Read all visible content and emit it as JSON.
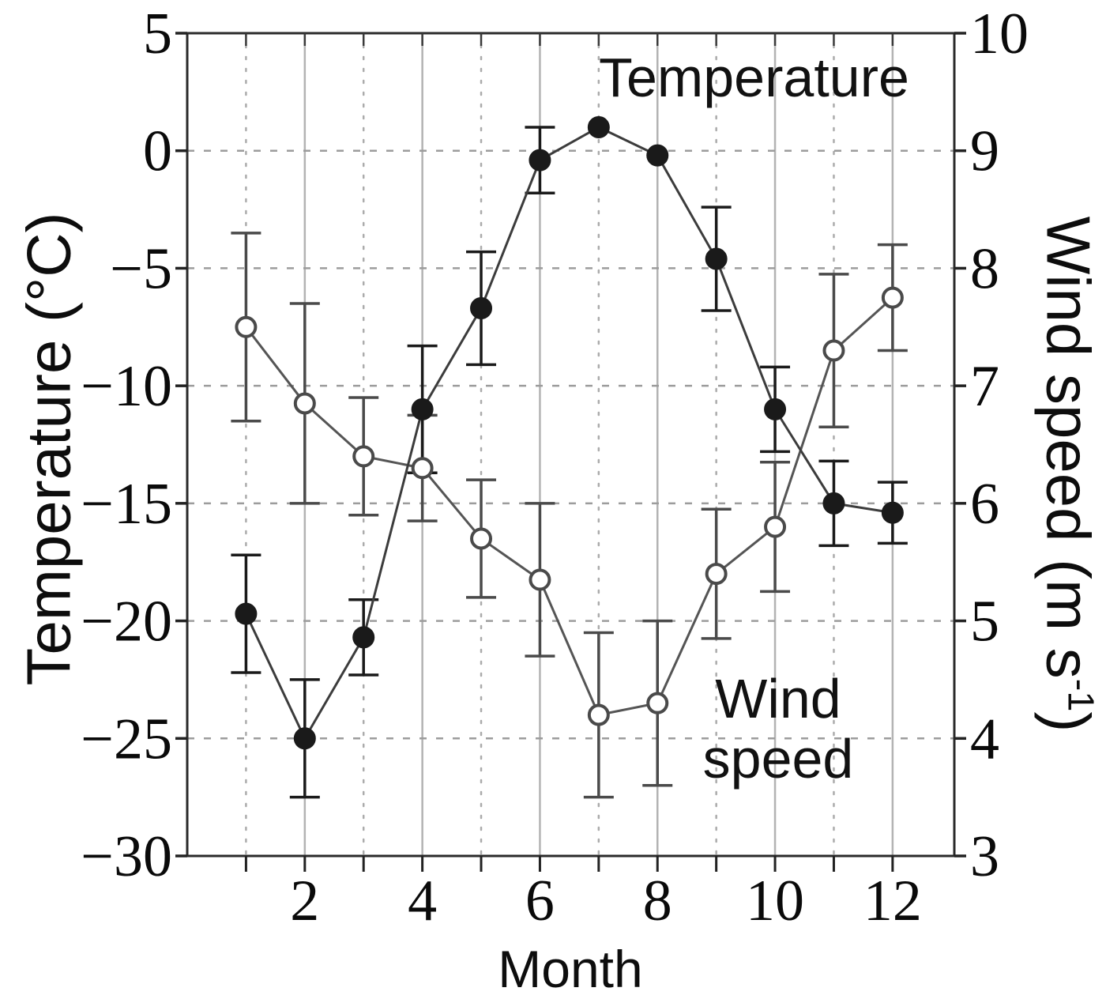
{
  "chart_data": {
    "type": "line",
    "title": "",
    "x": [
      1,
      2,
      3,
      4,
      5,
      6,
      7,
      8,
      9,
      10,
      11,
      12
    ],
    "xlabel": "Month",
    "xlim": [
      0,
      13.05
    ],
    "x_ticks": [
      2,
      4,
      6,
      8,
      10,
      12
    ],
    "x_minor_ticks": [
      1,
      3,
      5,
      7,
      9,
      11
    ],
    "grid": true,
    "left_axis": {
      "label": "Temperature (°C)",
      "lim": [
        -30,
        5
      ],
      "ticks": [
        5,
        0,
        -5,
        -10,
        -15,
        -20,
        -25,
        -30
      ]
    },
    "right_axis": {
      "label_prefix": "Wind speed (m s",
      "label_sup": "-1",
      "label_suffix": ")",
      "lim": [
        3,
        10
      ],
      "ticks": [
        10,
        9,
        8,
        7,
        6,
        5,
        4,
        3
      ]
    },
    "series": [
      {
        "name": "Temperature",
        "axis": "left",
        "marker": "filled-circle",
        "color": "#1a1a1a",
        "values": [
          -19.7,
          -25.0,
          -20.7,
          -11.0,
          -6.7,
          -0.4,
          1.0,
          -0.2,
          -4.6,
          -11.0,
          -15.0,
          -15.4
        ],
        "errors": [
          2.5,
          2.5,
          1.6,
          2.7,
          2.4,
          1.4,
          0,
          0,
          2.2,
          1.8,
          1.8,
          1.3
        ]
      },
      {
        "name": "Wind speed",
        "axis": "right",
        "marker": "open-circle",
        "color": "#4a4a4a",
        "values": [
          7.5,
          6.85,
          6.4,
          6.3,
          5.7,
          5.35,
          4.2,
          4.3,
          5.4,
          5.8,
          7.3,
          7.75
        ],
        "errors": [
          0.8,
          0.85,
          0.5,
          0.45,
          0.5,
          0.65,
          0.7,
          0.7,
          0.55,
          0.55,
          0.65,
          0.45
        ]
      }
    ],
    "annotations": {
      "temperature": "Temperature",
      "wind_line1": "Wind",
      "wind_line2": "speed"
    }
  }
}
